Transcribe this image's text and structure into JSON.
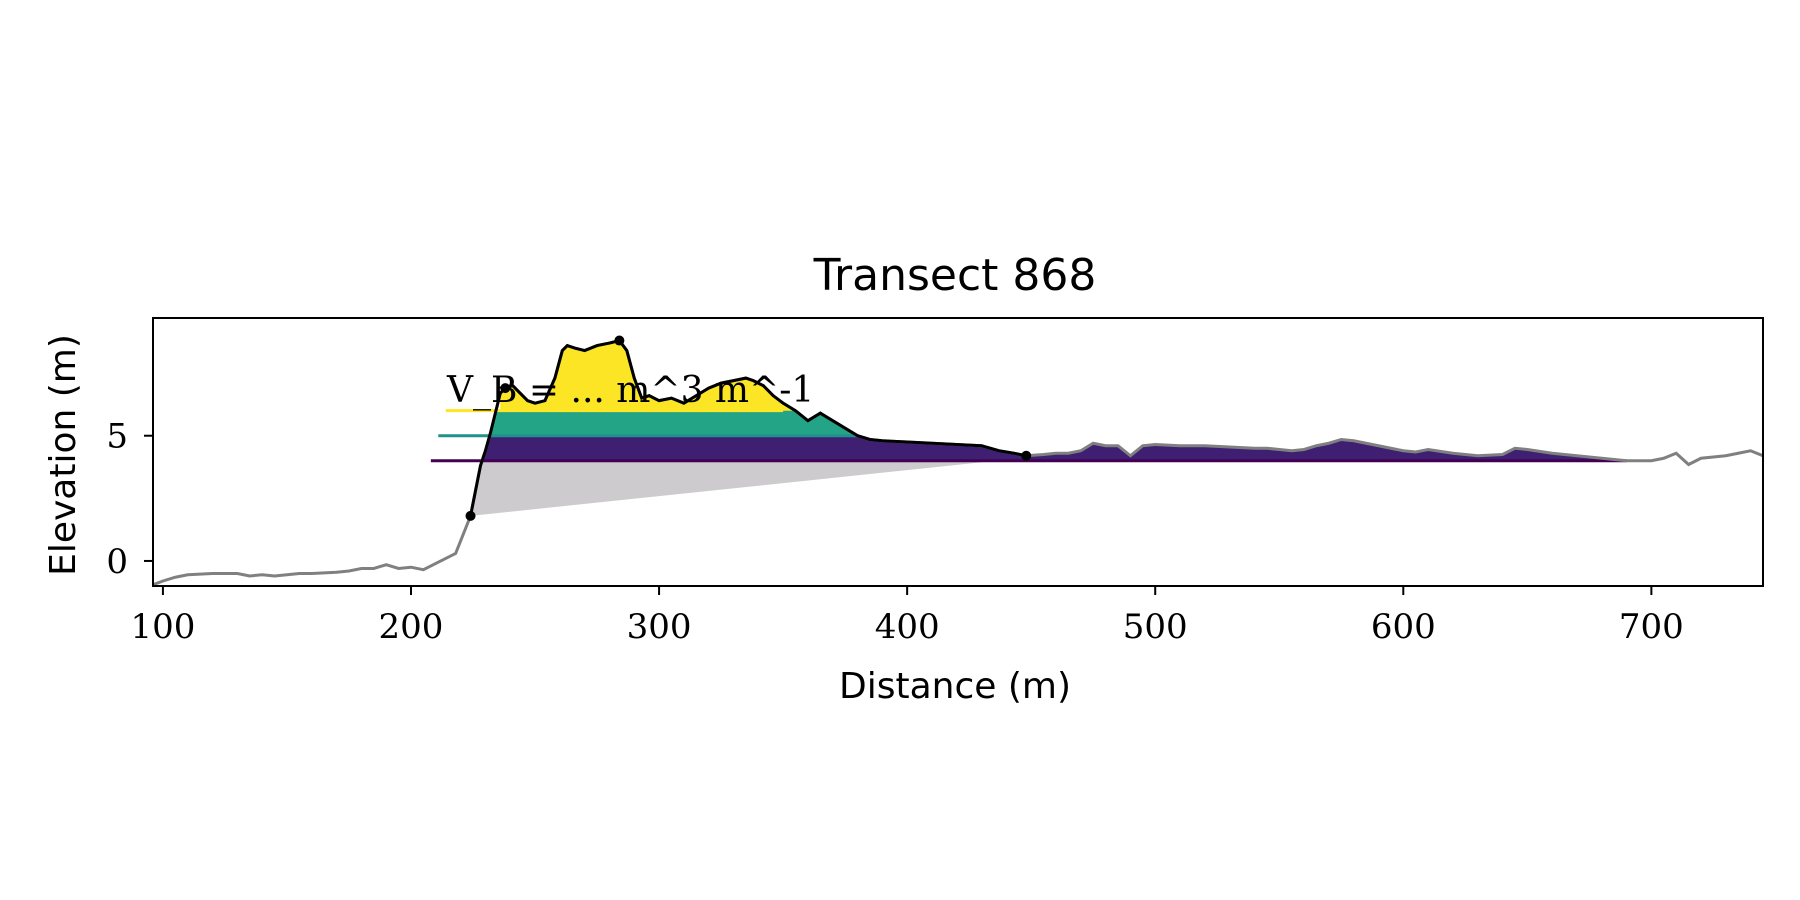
{
  "chart_data": {
    "type": "area",
    "title": "Transect 868",
    "xlabel": "Distance (m)",
    "ylabel": "Elevation (m)",
    "xlim": [
      96,
      745
    ],
    "ylim": [
      -1.0,
      9.7
    ],
    "xticks": [
      100,
      200,
      300,
      400,
      500,
      600,
      700
    ],
    "yticks": [
      0,
      5
    ],
    "grid": false,
    "annotation": "V_B = ... m^3 m^-1",
    "colors": {
      "profile_grey": "#808080",
      "profile_black": "#000000",
      "base_fill": "#cdcbcd",
      "level_low": "#3e1f72",
      "level_mid": "#23a486",
      "level_high": "#fbe524",
      "line_low": "#440154",
      "line_mid": "#21918c",
      "line_high": "#fde725"
    },
    "levels": [
      {
        "elevation": 4.0,
        "line_x": [
          208,
          690
        ],
        "fill_x": [
          229,
          685
        ]
      },
      {
        "elevation": 5.0,
        "line_x": [
          211,
          380
        ],
        "fill_x": [
          230,
          385
        ]
      },
      {
        "elevation": 6.0,
        "line_x": [
          214,
          350
        ],
        "fill_x": [
          236,
          360
        ]
      }
    ],
    "base_polygon": {
      "x": [
        225,
        229,
        232,
        436
      ],
      "y": [
        1.8,
        3.8,
        4.0,
        4.0
      ]
    },
    "markers": {
      "x": [
        224,
        238,
        284,
        448
      ],
      "y": [
        1.8,
        6.9,
        8.8,
        4.2
      ]
    },
    "highlight_range": [
      224,
      448
    ],
    "profile": {
      "x": [
        96,
        100,
        105,
        110,
        120,
        130,
        135,
        140,
        145,
        150,
        155,
        160,
        170,
        175,
        180,
        185,
        190,
        195,
        200,
        205,
        210,
        214,
        218,
        220,
        222,
        224,
        226,
        228,
        230,
        232,
        234,
        236,
        238,
        241,
        244,
        247,
        250,
        254,
        258,
        261,
        263,
        266,
        270,
        275,
        280,
        284,
        287,
        290,
        293,
        296,
        300,
        305,
        310,
        315,
        320,
        325,
        330,
        335,
        338,
        342,
        346,
        350,
        355,
        360,
        365,
        370,
        375,
        380,
        385,
        390,
        400,
        410,
        420,
        430,
        437,
        443,
        448,
        455,
        460,
        465,
        470,
        475,
        480,
        485,
        490,
        495,
        500,
        510,
        520,
        530,
        540,
        545,
        550,
        555,
        560,
        565,
        570,
        575,
        580,
        590,
        600,
        605,
        610,
        620,
        630,
        640,
        645,
        650,
        660,
        670,
        680,
        690,
        695,
        700,
        705,
        710,
        715,
        720,
        730,
        735,
        740,
        745
      ],
      "y": [
        -0.95,
        -0.8,
        -0.65,
        -0.55,
        -0.5,
        -0.5,
        -0.6,
        -0.55,
        -0.6,
        -0.55,
        -0.5,
        -0.5,
        -0.45,
        -0.4,
        -0.3,
        -0.3,
        -0.15,
        -0.3,
        -0.25,
        -0.35,
        -0.1,
        0.1,
        0.3,
        0.8,
        1.3,
        1.8,
        2.8,
        3.8,
        4.4,
        5.1,
        5.9,
        6.7,
        6.9,
        7.0,
        6.7,
        6.4,
        6.3,
        6.4,
        7.3,
        8.4,
        8.6,
        8.5,
        8.4,
        8.6,
        8.7,
        8.8,
        8.4,
        7.3,
        6.5,
        6.6,
        6.4,
        6.5,
        6.3,
        6.6,
        6.9,
        7.1,
        7.2,
        7.3,
        7.2,
        7.0,
        6.6,
        6.3,
        6.0,
        5.6,
        5.9,
        5.6,
        5.3,
        5.0,
        4.85,
        4.8,
        4.75,
        4.7,
        4.65,
        4.6,
        4.4,
        4.3,
        4.2,
        4.25,
        4.3,
        4.3,
        4.4,
        4.7,
        4.6,
        4.6,
        4.2,
        4.6,
        4.65,
        4.6,
        4.6,
        4.55,
        4.5,
        4.5,
        4.45,
        4.4,
        4.45,
        4.6,
        4.7,
        4.85,
        4.8,
        4.6,
        4.4,
        4.35,
        4.45,
        4.3,
        4.2,
        4.25,
        4.5,
        4.45,
        4.3,
        4.2,
        4.1,
        4.0,
        4.0,
        4.0,
        4.1,
        4.3,
        3.85,
        4.1,
        4.2,
        4.3,
        4.4,
        4.2
      ]
    }
  }
}
